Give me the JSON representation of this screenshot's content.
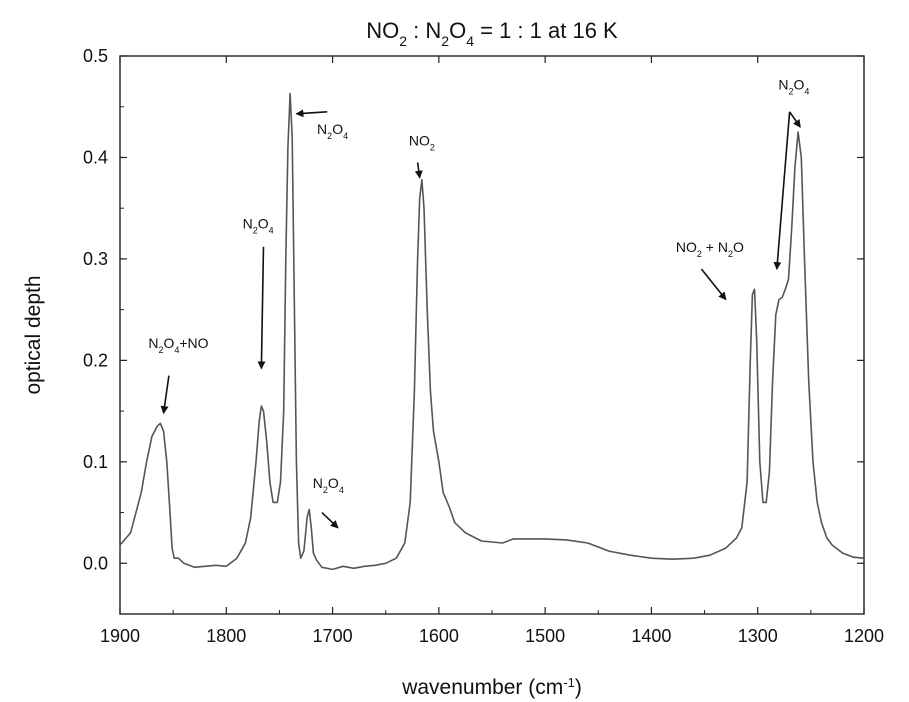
{
  "chart_data": {
    "type": "line",
    "title": [
      "NO",
      "2",
      " : N",
      "2",
      "O",
      "4",
      " = 1 : 1  at  16 K"
    ],
    "xlabel": [
      "wavenumber (cm",
      "-1",
      ")"
    ],
    "ylabel": "optical depth",
    "xlim": [
      1900,
      1200
    ],
    "ylim": [
      -0.05,
      0.5
    ],
    "x_reversed": true,
    "xticks": [
      1900,
      1800,
      1700,
      1600,
      1500,
      1400,
      1300,
      1200
    ],
    "yticks": [
      0.0,
      0.1,
      0.2,
      0.3,
      0.4,
      0.5
    ],
    "x_tick_labels": [
      "1900",
      "1800",
      "1700",
      "1600",
      "1500",
      "1400",
      "1300",
      "1200"
    ],
    "y_tick_labels": [
      "0.0",
      "0.1",
      "0.2",
      "0.3",
      "0.4",
      "0.5"
    ],
    "line_color": "#555555",
    "grid": false,
    "series": [
      {
        "points": [
          [
            1900,
            0.018
          ],
          [
            1890,
            0.03
          ],
          [
            1880,
            0.07
          ],
          [
            1875,
            0.1
          ],
          [
            1870,
            0.125
          ],
          [
            1865,
            0.135
          ],
          [
            1862,
            0.138
          ],
          [
            1859,
            0.13
          ],
          [
            1856,
            0.1
          ],
          [
            1853,
            0.05
          ],
          [
            1851,
            0.015
          ],
          [
            1849,
            0.005
          ],
          [
            1845,
            0.005
          ],
          [
            1840,
            0.0
          ],
          [
            1830,
            -0.004
          ],
          [
            1820,
            -0.003
          ],
          [
            1810,
            -0.002
          ],
          [
            1800,
            -0.003
          ],
          [
            1790,
            0.005
          ],
          [
            1782,
            0.02
          ],
          [
            1777,
            0.045
          ],
          [
            1772,
            0.1
          ],
          [
            1769,
            0.14
          ],
          [
            1767,
            0.155
          ],
          [
            1765,
            0.15
          ],
          [
            1762,
            0.12
          ],
          [
            1759,
            0.08
          ],
          [
            1756,
            0.06
          ],
          [
            1752,
            0.06
          ],
          [
            1749,
            0.08
          ],
          [
            1746,
            0.15
          ],
          [
            1744,
            0.3
          ],
          [
            1742,
            0.41
          ],
          [
            1740,
            0.463
          ],
          [
            1738,
            0.42
          ],
          [
            1736,
            0.26
          ],
          [
            1734,
            0.1
          ],
          [
            1732,
            0.02
          ],
          [
            1730,
            0.005
          ],
          [
            1727,
            0.012
          ],
          [
            1724,
            0.045
          ],
          [
            1722,
            0.053
          ],
          [
            1720,
            0.035
          ],
          [
            1718,
            0.01
          ],
          [
            1715,
            0.003
          ],
          [
            1710,
            -0.004
          ],
          [
            1700,
            -0.006
          ],
          [
            1690,
            -0.003
          ],
          [
            1680,
            -0.005
          ],
          [
            1670,
            -0.003
          ],
          [
            1660,
            -0.002
          ],
          [
            1650,
            0.0
          ],
          [
            1640,
            0.005
          ],
          [
            1632,
            0.02
          ],
          [
            1627,
            0.06
          ],
          [
            1623,
            0.17
          ],
          [
            1620,
            0.3
          ],
          [
            1618,
            0.36
          ],
          [
            1616,
            0.378
          ],
          [
            1614,
            0.35
          ],
          [
            1611,
            0.25
          ],
          [
            1608,
            0.17
          ],
          [
            1605,
            0.13
          ],
          [
            1600,
            0.1
          ],
          [
            1596,
            0.07
          ],
          [
            1590,
            0.055
          ],
          [
            1585,
            0.04
          ],
          [
            1575,
            0.03
          ],
          [
            1560,
            0.022
          ],
          [
            1540,
            0.02
          ],
          [
            1530,
            0.024
          ],
          [
            1500,
            0.024
          ],
          [
            1480,
            0.023
          ],
          [
            1460,
            0.02
          ],
          [
            1450,
            0.016
          ],
          [
            1440,
            0.012
          ],
          [
            1420,
            0.008
          ],
          [
            1400,
            0.005
          ],
          [
            1380,
            0.004
          ],
          [
            1360,
            0.005
          ],
          [
            1345,
            0.008
          ],
          [
            1330,
            0.015
          ],
          [
            1320,
            0.025
          ],
          [
            1315,
            0.035
          ],
          [
            1310,
            0.08
          ],
          [
            1307,
            0.2
          ],
          [
            1305,
            0.265
          ],
          [
            1303,
            0.27
          ],
          [
            1301,
            0.22
          ],
          [
            1298,
            0.1
          ],
          [
            1295,
            0.06
          ],
          [
            1292,
            0.06
          ],
          [
            1289,
            0.09
          ],
          [
            1286,
            0.18
          ],
          [
            1283,
            0.245
          ],
          [
            1280,
            0.26
          ],
          [
            1277,
            0.262
          ],
          [
            1274,
            0.27
          ],
          [
            1271,
            0.28
          ],
          [
            1268,
            0.33
          ],
          [
            1265,
            0.39
          ],
          [
            1262,
            0.425
          ],
          [
            1259,
            0.4
          ],
          [
            1256,
            0.3
          ],
          [
            1252,
            0.18
          ],
          [
            1248,
            0.1
          ],
          [
            1244,
            0.06
          ],
          [
            1240,
            0.04
          ],
          [
            1235,
            0.025
          ],
          [
            1230,
            0.018
          ],
          [
            1220,
            0.01
          ],
          [
            1210,
            0.006
          ],
          [
            1200,
            0.005
          ]
        ]
      }
    ],
    "annotations": [
      {
        "id": "n2o4-no",
        "parts": [
          "N",
          "2",
          "O",
          "4",
          "+NO"
        ],
        "text_x": 1845,
        "text_y": 0.212,
        "arrow_from": [
          1854,
          0.185
        ],
        "arrow_to": [
          1859,
          0.148
        ]
      },
      {
        "id": "n2o4-1767",
        "parts": [
          "N",
          "2",
          "O",
          "4"
        ],
        "text_x": 1770,
        "text_y": 0.33,
        "arrow_from": [
          1765,
          0.312
        ],
        "arrow_to": [
          1767,
          0.192
        ]
      },
      {
        "id": "n2o4-1740",
        "parts": [
          "N",
          "2",
          "O",
          "4"
        ],
        "text_x": 1700,
        "text_y": 0.423,
        "arrow_from": [
          1705,
          0.445
        ],
        "arrow_to": [
          1734,
          0.443
        ]
      },
      {
        "id": "n2o4-1722",
        "parts": [
          "N",
          "2",
          "O",
          "4"
        ],
        "text_x": 1704,
        "text_y": 0.074,
        "arrow_from": [
          1710,
          0.05
        ],
        "arrow_to": [
          1695,
          0.035
        ]
      },
      {
        "id": "no2-1616",
        "parts": [
          "NO",
          "2"
        ],
        "text_x": 1616,
        "text_y": 0.412,
        "arrow_from": [
          1620,
          0.395
        ],
        "arrow_to": [
          1618,
          0.38
        ]
      },
      {
        "id": "no2-n2o",
        "parts": [
          "NO",
          "2",
          " + N",
          "2",
          "O"
        ],
        "text_x": 1345,
        "text_y": 0.307,
        "arrow_from": [
          1353,
          0.29
        ],
        "arrow_to": [
          1330,
          0.26
        ]
      },
      {
        "id": "n2o4-1280",
        "parts": [
          "N",
          "2",
          "O",
          "4"
        ],
        "text_x": 1266,
        "text_y": 0.467,
        "arrow_from": [
          1270,
          0.445
        ],
        "arrow_to": [
          1282,
          0.29
        ]
      },
      {
        "id": "n2o4-1262",
        "parts": [],
        "arrow_from": [
          1270,
          0.445
        ],
        "arrow_to": [
          1260,
          0.43
        ]
      }
    ]
  }
}
